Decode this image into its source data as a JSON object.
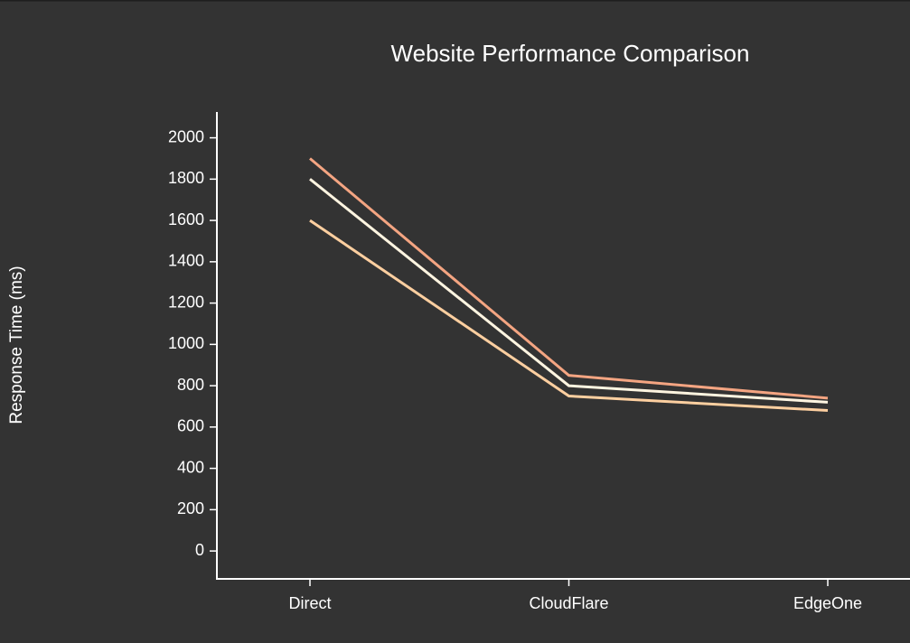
{
  "chart_data": {
    "type": "line",
    "title": "Website Performance Comparison",
    "y_label": "Response Time (ms)",
    "categories": [
      "Direct",
      "CloudFlare",
      "EdgeOne"
    ],
    "series": [
      {
        "color": "#f4a582",
        "values": [
          1900,
          850,
          740
        ]
      },
      {
        "color": "#fff5e1",
        "values": [
          1800,
          800,
          720
        ]
      },
      {
        "color": "#fdcfa0",
        "values": [
          1600,
          750,
          680
        ]
      }
    ],
    "ylim": [
      -135,
      2125
    ],
    "yticks": [
      0,
      200,
      400,
      600,
      800,
      1000,
      1200,
      1400,
      1600,
      1800,
      2000
    ]
  }
}
